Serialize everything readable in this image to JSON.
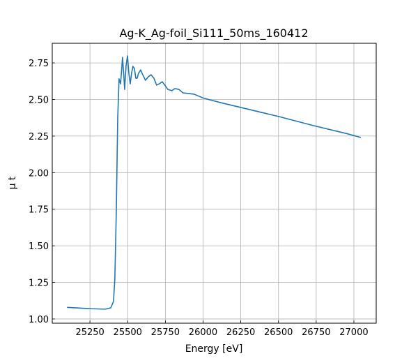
{
  "chart_data": {
    "type": "line",
    "title": "Ag-K_Ag-foil_Si111_50ms_160412",
    "x_label": "Energy [eV]",
    "y_label": "μ t",
    "color": "#1f77b4",
    "grid": true,
    "x": [
      25098,
      25259,
      25351,
      25388,
      25406,
      25415,
      25425,
      25434,
      25443,
      25453,
      25462,
      25466,
      25475,
      25480,
      25489,
      25499,
      25508,
      25517,
      25526,
      25535,
      25545,
      25554,
      25563,
      25572,
      25586,
      25600,
      25618,
      25637,
      25655,
      25674,
      25692,
      25710,
      25729,
      25747,
      25766,
      25793,
      25812,
      25839,
      25867,
      25904,
      25941,
      25996,
      26042,
      26134,
      26272,
      26503,
      26733,
      26963,
      27046
    ],
    "values": [
      1.079,
      1.07,
      1.067,
      1.076,
      1.119,
      1.272,
      1.749,
      2.369,
      2.641,
      2.607,
      2.726,
      2.788,
      2.655,
      2.569,
      2.726,
      2.798,
      2.679,
      2.607,
      2.679,
      2.726,
      2.712,
      2.645,
      2.645,
      2.679,
      2.702,
      2.669,
      2.631,
      2.655,
      2.669,
      2.645,
      2.598,
      2.607,
      2.621,
      2.598,
      2.569,
      2.56,
      2.574,
      2.569,
      2.545,
      2.541,
      2.536,
      2.512,
      2.498,
      2.474,
      2.44,
      2.383,
      2.321,
      2.264,
      2.24
    ],
    "xlim": [
      25000,
      27148
    ],
    "ylim": [
      0.971,
      2.884
    ],
    "xticks": [
      25250,
      25500,
      25750,
      26000,
      26250,
      26500,
      26750,
      27000
    ],
    "yticks": [
      {
        "value": 1,
        "label": "1.00"
      },
      1.25,
      {
        "value": 1.5,
        "label": "1.50"
      },
      1.75,
      {
        "value": 2,
        "label": "2.00"
      },
      2.25,
      {
        "value": 2.5,
        "label": "2.50"
      },
      2.75
    ]
  }
}
